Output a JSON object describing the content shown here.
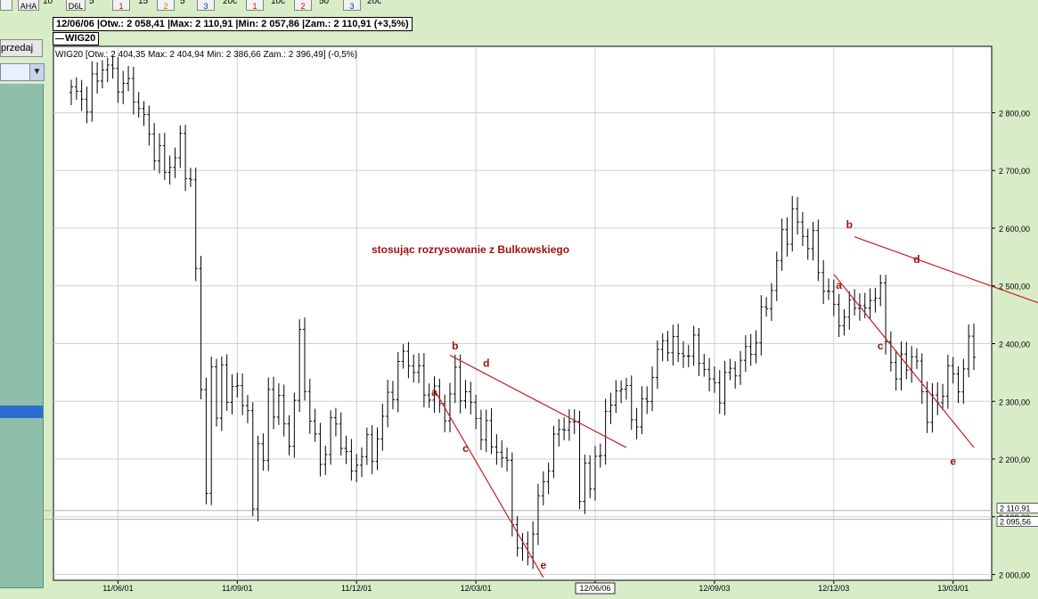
{
  "toolbar": {
    "buttons": [
      {
        "label": "",
        "color": "#000000"
      },
      {
        "label": "AHA",
        "color": "#000000"
      },
      {
        "label": "D6L",
        "color": "#000000"
      },
      {
        "label": "1",
        "color": "#c00000"
      },
      {
        "label": "2",
        "color": "#d07000"
      },
      {
        "label": "3",
        "color": "#0030c0"
      },
      {
        "label": "1",
        "color": "#c00000"
      },
      {
        "label": "2",
        "color": "#c00000"
      },
      {
        "label": "3",
        "color": "#0030c0"
      }
    ],
    "texts": [
      "10",
      "5",
      "15",
      "5",
      "20c",
      "10c",
      "50",
      "20c"
    ]
  },
  "left_panel": {
    "button_label": "przedaj"
  },
  "header": {
    "text": "12/06/06 |Otw.: 2 058,41 |Max: 2 110,91 |Min: 2 057,86 |Zam.: 2 110,91 (+3,5%)"
  },
  "legend": {
    "text": "WIG20"
  },
  "chart_data": {
    "type": "ohlc",
    "info_line": "WIG20 [Otw.: 2 404,35  Max: 2 404,94  Min: 2 386,66  Zam.: 2 396,49] (-0,5%)",
    "annotation": "stosując rozrysowanie z Bulkowskiego",
    "x_tick_labels": [
      "11/06/01",
      "11/09/01",
      "11/12/01",
      "12/03/01",
      "12/06/06",
      "12/09/03",
      "12/12/03",
      "13/03/01"
    ],
    "highlighted_x_label": "12/06/06",
    "y_tick_labels": [
      "2 000,00",
      "2 100,00",
      "2 200,00",
      "2 300,00",
      "2 400,00",
      "2 500,00",
      "2 600,00",
      "2 700,00",
      "2 800,00"
    ],
    "y_ticks": [
      2000,
      2100,
      2200,
      2300,
      2400,
      2500,
      2600,
      2700,
      2800
    ],
    "price_markers": [
      {
        "value": 2110.91,
        "label": "2 110,91"
      },
      {
        "value": 2095.56,
        "label": "2 095,56"
      }
    ],
    "ylim": [
      1990,
      2915
    ],
    "grid": true,
    "bar_color": "#000000",
    "line_color": "#c02020",
    "label_color": "#a01010",
    "anchors": [
      [
        0,
        2835
      ],
      [
        3,
        2820
      ],
      [
        6,
        2885
      ],
      [
        9,
        2855
      ],
      [
        12,
        2835
      ],
      [
        15,
        2760
      ],
      [
        18,
        2700
      ],
      [
        21,
        2740
      ],
      [
        23,
        2680
      ],
      [
        24,
        2520
      ],
      [
        25,
        2320
      ],
      [
        26,
        2160
      ],
      [
        27,
        2340
      ],
      [
        28,
        2270
      ],
      [
        29,
        2380
      ],
      [
        30,
        2290
      ],
      [
        32,
        2340
      ],
      [
        34,
        2260
      ],
      [
        35,
        2130
      ],
      [
        36,
        2230
      ],
      [
        37,
        2190
      ],
      [
        38,
        2310
      ],
      [
        40,
        2290
      ],
      [
        42,
        2230
      ],
      [
        43,
        2310
      ],
      [
        44,
        2400
      ],
      [
        46,
        2270
      ],
      [
        48,
        2190
      ],
      [
        50,
        2260
      ],
      [
        52,
        2240
      ],
      [
        54,
        2170
      ],
      [
        56,
        2220
      ],
      [
        58,
        2210
      ],
      [
        60,
        2270
      ],
      [
        62,
        2330
      ],
      [
        64,
        2380
      ],
      [
        66,
        2360
      ],
      [
        68,
        2320
      ],
      [
        70,
        2310
      ],
      [
        72,
        2280
      ],
      [
        74,
        2340
      ],
      [
        76,
        2310
      ],
      [
        78,
        2270
      ],
      [
        80,
        2240
      ],
      [
        82,
        2220
      ],
      [
        84,
        2180
      ],
      [
        86,
        2040
      ],
      [
        88,
        2040
      ],
      [
        90,
        2120
      ],
      [
        92,
        2200
      ],
      [
        94,
        2250
      ],
      [
        96,
        2270
      ],
      [
        97,
        2240
      ],
      [
        98,
        2150
      ],
      [
        99,
        2190
      ],
      [
        100,
        2140
      ],
      [
        101,
        2200
      ],
      [
        103,
        2260
      ],
      [
        105,
        2330
      ],
      [
        107,
        2310
      ],
      [
        109,
        2260
      ],
      [
        111,
        2310
      ],
      [
        112,
        2350
      ],
      [
        113,
        2380
      ],
      [
        115,
        2410
      ],
      [
        117,
        2380
      ],
      [
        119,
        2390
      ],
      [
        121,
        2385
      ],
      [
        123,
        2330
      ],
      [
        125,
        2320
      ],
      [
        127,
        2350
      ],
      [
        129,
        2370
      ],
      [
        131,
        2390
      ],
      [
        133,
        2440
      ],
      [
        135,
        2500
      ],
      [
        137,
        2580
      ],
      [
        139,
        2620
      ],
      [
        141,
        2590
      ],
      [
        143,
        2570
      ],
      [
        145,
        2500
      ],
      [
        147,
        2460
      ],
      [
        149,
        2440
      ],
      [
        151,
        2480
      ],
      [
        153,
        2450
      ],
      [
        155,
        2500
      ],
      [
        156,
        2480
      ],
      [
        157,
        2410
      ],
      [
        159,
        2340
      ],
      [
        161,
        2380
      ],
      [
        163,
        2360
      ],
      [
        165,
        2280
      ],
      [
        167,
        2300
      ],
      [
        169,
        2350
      ],
      [
        171,
        2330
      ],
      [
        173,
        2390
      ],
      [
        174,
        2396
      ]
    ],
    "trendlines": [
      {
        "points": [
          [
            73,
            2380
          ],
          [
            107,
            2220
          ]
        ]
      },
      {
        "points": [
          [
            70,
            2320
          ],
          [
            91,
            1995
          ]
        ]
      },
      {
        "points": [
          [
            151,
            2585
          ],
          [
            199,
            2430
          ]
        ]
      },
      {
        "points": [
          [
            147,
            2520
          ],
          [
            174,
            2220
          ]
        ]
      }
    ],
    "point_labels": [
      {
        "text": "a",
        "x": 70,
        "y": 2310
      },
      {
        "text": "b",
        "x": 74,
        "y": 2390
      },
      {
        "text": "c",
        "x": 76,
        "y": 2212
      },
      {
        "text": "d",
        "x": 80,
        "y": 2360
      },
      {
        "text": "e",
        "x": 91,
        "y": 2010
      },
      {
        "text": "a",
        "x": 148,
        "y": 2495
      },
      {
        "text": "b",
        "x": 150,
        "y": 2600
      },
      {
        "text": "c",
        "x": 156,
        "y": 2390
      },
      {
        "text": "d",
        "x": 163,
        "y": 2540
      },
      {
        "text": "e",
        "x": 170,
        "y": 2190
      }
    ],
    "x_tick_positions": [
      9,
      32,
      55,
      78,
      101,
      124,
      147,
      170
    ],
    "n_bars": 175
  }
}
